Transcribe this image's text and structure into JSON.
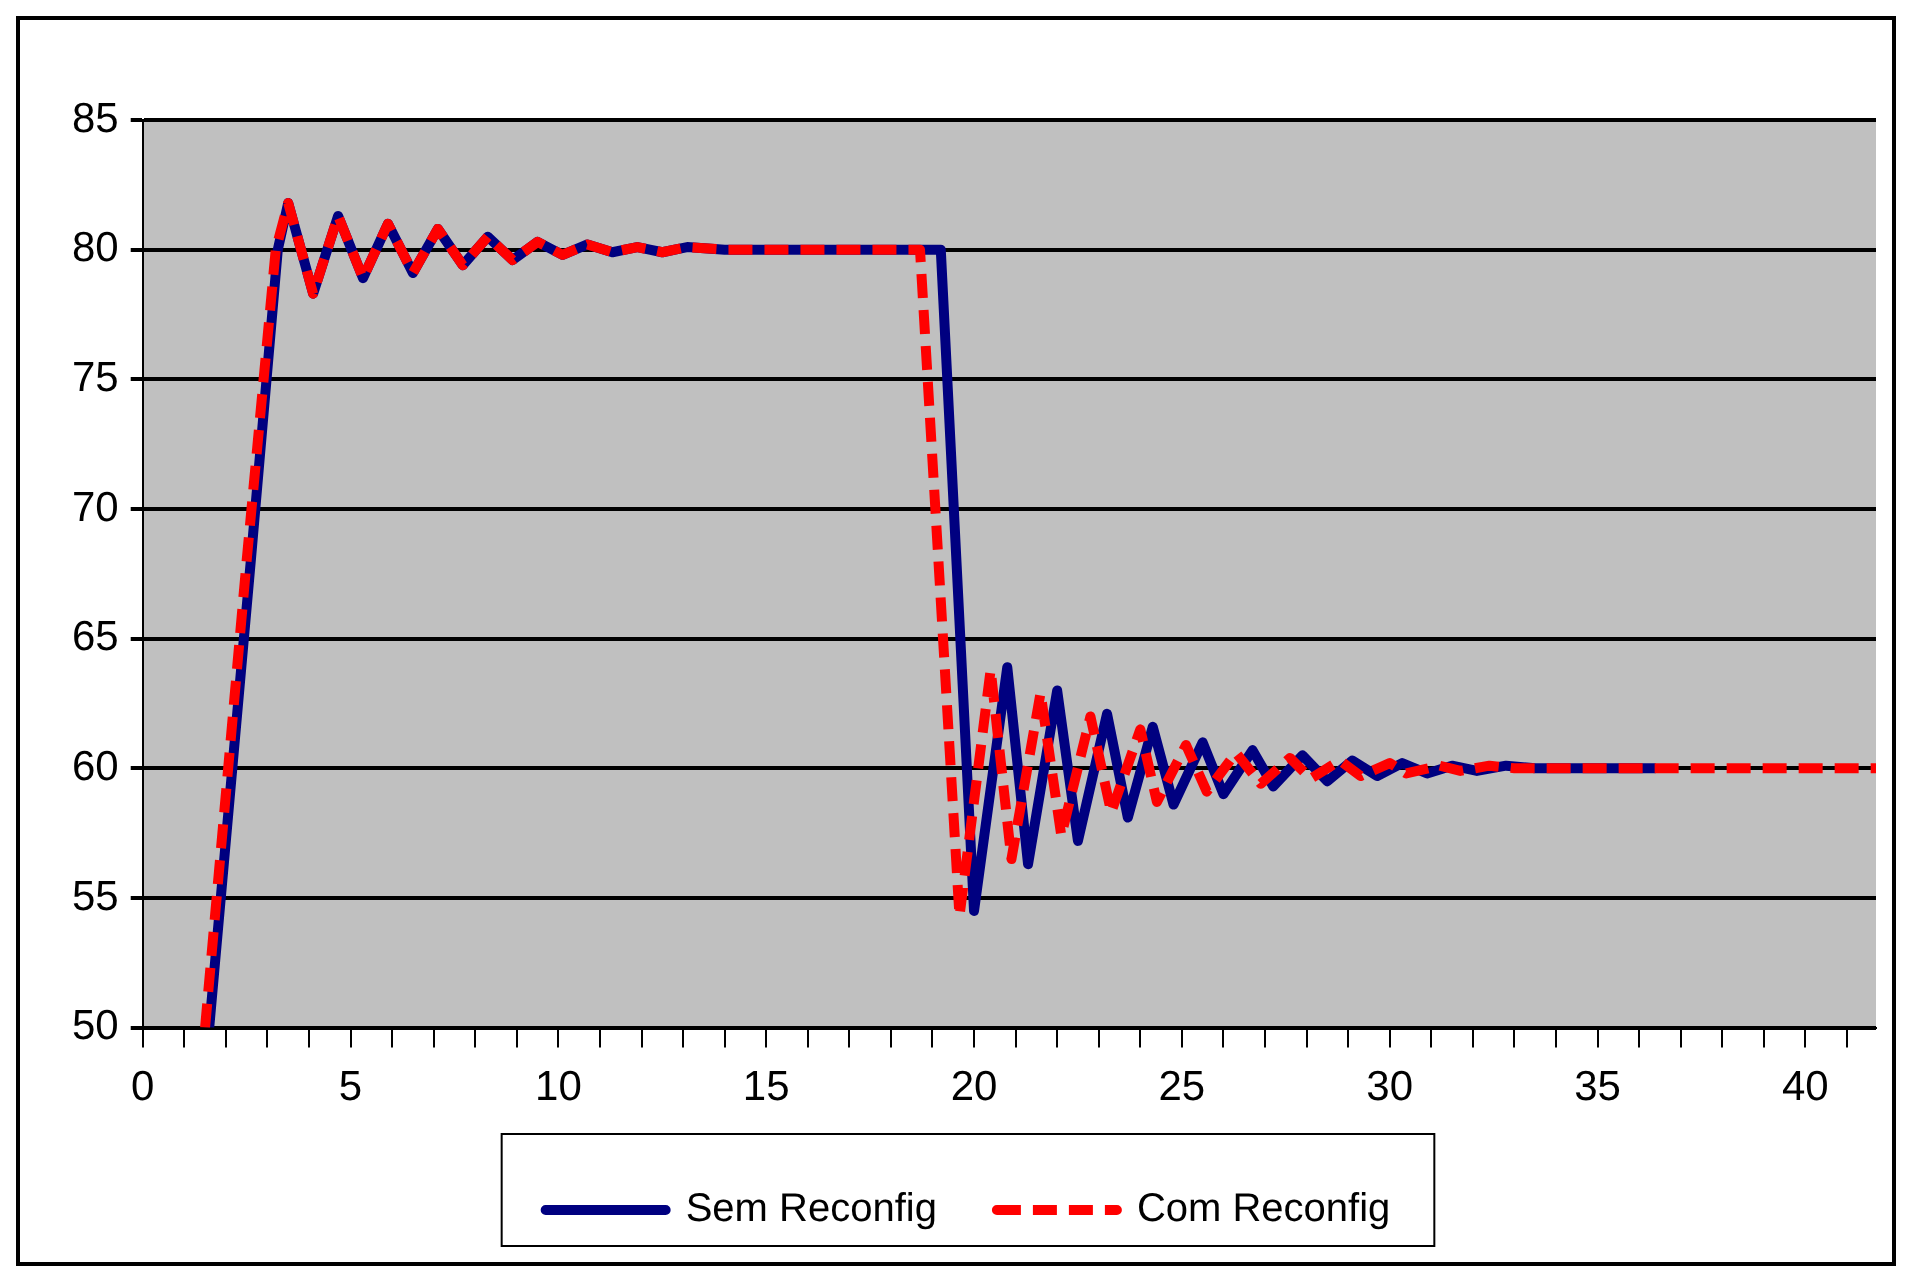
{
  "chart_data": {
    "type": "line",
    "series": [
      {
        "name": "Sem Reconfig",
        "color": "#000080",
        "line_style": "solid",
        "x": [
          1.6,
          2.6,
          3.25,
          3.5,
          4.1,
          4.7,
          5.3,
          5.9,
          6.5,
          7.1,
          7.7,
          8.3,
          8.9,
          9.5,
          10.1,
          10.7,
          11.3,
          11.9,
          12.5,
          13.1,
          14,
          19.2,
          20.0,
          20.8,
          21.3,
          22.0,
          22.5,
          23.2,
          23.7,
          24.3,
          24.8,
          25.5,
          26.0,
          26.7,
          27.2,
          27.9,
          28.5,
          29.1,
          29.7,
          30.3,
          30.9,
          31.5,
          32.1,
          32.8,
          33.5,
          36.4
        ],
        "values": [
          50,
          68,
          80,
          81.8,
          78.3,
          81.3,
          78.9,
          81.0,
          79.1,
          80.8,
          79.4,
          80.5,
          79.6,
          80.3,
          79.8,
          80.2,
          79.9,
          80.1,
          79.9,
          80.1,
          80,
          80,
          54.5,
          63.9,
          56.3,
          63.0,
          57.2,
          62.1,
          58.1,
          61.6,
          58.6,
          61.0,
          59.0,
          60.7,
          59.3,
          60.5,
          59.5,
          60.3,
          59.7,
          60.2,
          59.8,
          60.1,
          59.9,
          60.1,
          60,
          60
        ]
      },
      {
        "name": "Com Reconfig",
        "color": "#ff0000",
        "line_style": "dashed",
        "x": [
          1.5,
          2.5,
          3.2,
          3.5,
          4.1,
          4.7,
          5.3,
          5.9,
          6.5,
          7.1,
          7.7,
          8.3,
          8.9,
          9.5,
          10.1,
          10.7,
          11.3,
          11.9,
          12.5,
          13.1,
          14,
          18.7,
          19.65,
          20.4,
          20.9,
          21.6,
          22.1,
          22.8,
          23.3,
          24.0,
          24.4,
          25.1,
          25.6,
          26.3,
          26.9,
          27.6,
          28.1,
          28.8,
          29.3,
          30.0,
          30.4,
          31.2,
          31.7,
          32.4,
          33,
          41.7
        ],
        "values": [
          50,
          68,
          80,
          81.8,
          78.3,
          81.3,
          78.9,
          81.0,
          79.1,
          80.8,
          79.4,
          80.5,
          79.6,
          80.3,
          79.8,
          80.2,
          79.9,
          80.1,
          79.9,
          80.1,
          80,
          80,
          54.3,
          63.8,
          56.5,
          62.9,
          57.4,
          62.0,
          58.3,
          61.5,
          58.7,
          60.9,
          59.1,
          60.6,
          59.4,
          60.4,
          59.6,
          60.3,
          59.7,
          60.2,
          59.8,
          60.1,
          59.9,
          60.1,
          60,
          60
        ]
      }
    ],
    "xlim": [
      0,
      41.7
    ],
    "xticks": [
      0,
      {
        "value": 1,
        "label": null
      },
      {
        "value": 2,
        "label": null
      },
      {
        "value": 3,
        "label": null
      },
      {
        "value": 4,
        "label": null
      },
      5,
      {
        "value": 6,
        "label": null
      },
      {
        "value": 7,
        "label": null
      },
      {
        "value": 8,
        "label": null
      },
      {
        "value": 9,
        "label": null
      },
      10,
      {
        "value": 11,
        "label": null
      },
      {
        "value": 12,
        "label": null
      },
      {
        "value": 13,
        "label": null
      },
      {
        "value": 14,
        "label": null
      },
      15,
      {
        "value": 16,
        "label": null
      },
      {
        "value": 17,
        "label": null
      },
      {
        "value": 18,
        "label": null
      },
      {
        "value": 19,
        "label": null
      },
      20,
      {
        "value": 21,
        "label": null
      },
      {
        "value": 22,
        "label": null
      },
      {
        "value": 23,
        "label": null
      },
      {
        "value": 24,
        "label": null
      },
      25,
      {
        "value": 26,
        "label": null
      },
      {
        "value": 27,
        "label": null
      },
      {
        "value": 28,
        "label": null
      },
      {
        "value": 29,
        "label": null
      },
      30,
      {
        "value": 31,
        "label": null
      },
      {
        "value": 32,
        "label": null
      },
      {
        "value": 33,
        "label": null
      },
      {
        "value": 34,
        "label": null
      },
      35,
      {
        "value": 36,
        "label": null
      },
      {
        "value": 37,
        "label": null
      },
      {
        "value": 38,
        "label": null
      },
      {
        "value": 39,
        "label": null
      },
      40,
      {
        "value": 41,
        "label": null
      }
    ],
    "ylim": [
      50,
      85
    ],
    "yticks": [
      50,
      55,
      60,
      65,
      70,
      75,
      80,
      85
    ],
    "grid": "y",
    "legend": "bottom",
    "marker": "none"
  }
}
